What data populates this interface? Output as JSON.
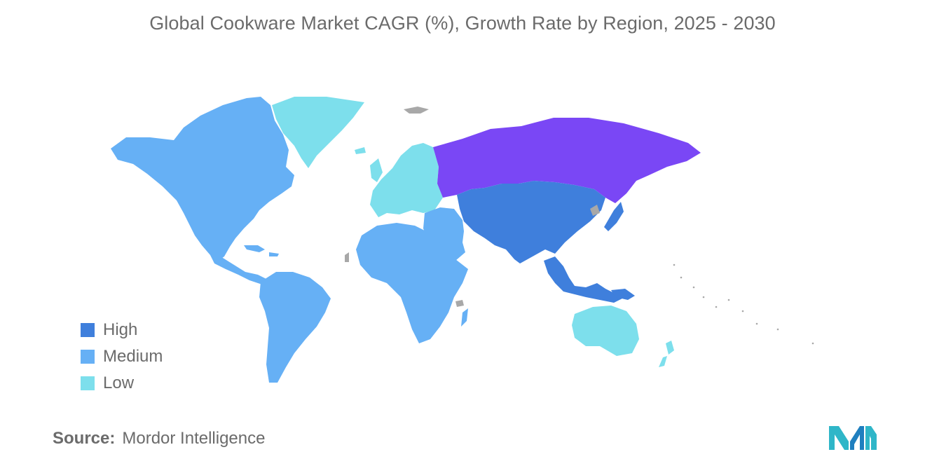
{
  "title": "Global Cookware Market CAGR (%), Growth Rate by Region, 2025 - 2030",
  "legend": [
    {
      "label": "High",
      "color": "#3f7fdc"
    },
    {
      "label": "Medium",
      "color": "#66b0f5"
    },
    {
      "label": "Low",
      "color": "#7ddfec"
    }
  ],
  "other_colors": {
    "russia": "#7a47f5",
    "no_data": "#a8a8a8"
  },
  "regions": {
    "north_america": "Medium",
    "south_america": "Medium",
    "africa": "Medium",
    "middle_east": "Medium",
    "europe": "Low",
    "greenland": "Low",
    "asia": "High",
    "southeast_asia": "High",
    "australia_new_zealand": "Low"
  },
  "source": {
    "label": "Source:",
    "value": "Mordor Intelligence"
  },
  "logo_icon": "mordor-intelligence-logo"
}
